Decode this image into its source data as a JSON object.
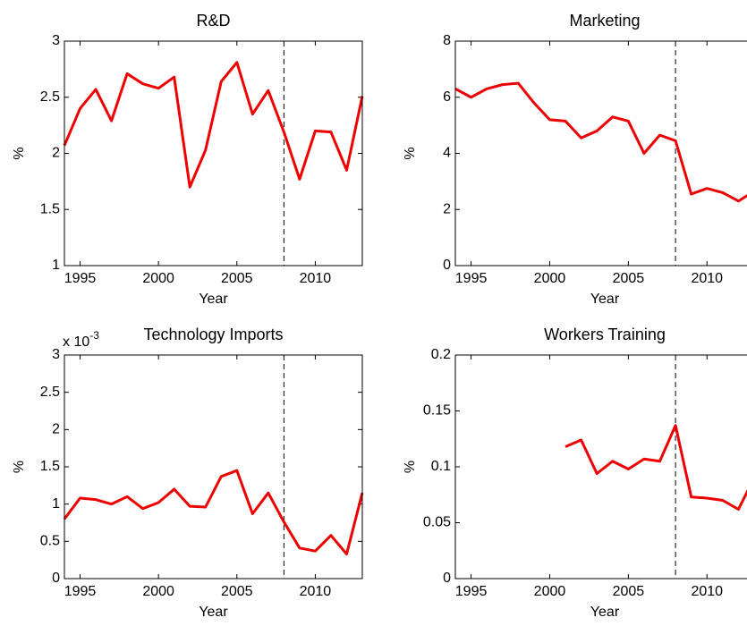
{
  "chart_data": [
    {
      "type": "line",
      "title": "R&D",
      "xlabel": "Year",
      "ylabel": "%",
      "x": [
        1994,
        1995,
        1996,
        1997,
        1998,
        1999,
        2000,
        2001,
        2002,
        2003,
        2004,
        2005,
        2006,
        2007,
        2008,
        2009,
        2010,
        2011,
        2012,
        2013
      ],
      "series": [
        {
          "color": "#ee0000",
          "values": [
            2.07,
            2.4,
            2.57,
            2.29,
            2.71,
            2.62,
            2.58,
            2.68,
            1.7,
            2.03,
            2.64,
            2.81,
            2.35,
            2.56,
            2.19,
            1.77,
            2.2,
            2.19,
            1.85,
            2.51
          ]
        }
      ],
      "xlim": [
        1994,
        2013
      ],
      "xticks": [
        1995,
        2000,
        2005,
        2010
      ],
      "ylim": [
        1,
        3
      ],
      "yticks": [
        1,
        1.5,
        2,
        2.5,
        3
      ],
      "vline": 2008
    },
    {
      "type": "line",
      "title": "Marketing",
      "xlabel": "Year",
      "ylabel": "%",
      "x": [
        1994,
        1995,
        1996,
        1997,
        1998,
        1999,
        2000,
        2001,
        2002,
        2003,
        2004,
        2005,
        2006,
        2007,
        2008,
        2009,
        2010,
        2011,
        2012,
        2013
      ],
      "series": [
        {
          "color": "#ee0000",
          "values": [
            6.3,
            6.0,
            6.3,
            6.45,
            6.5,
            5.8,
            5.2,
            5.15,
            4.55,
            4.8,
            5.3,
            5.15,
            4.0,
            4.65,
            4.45,
            2.55,
            2.75,
            2.6,
            2.3,
            2.65
          ]
        }
      ],
      "xlim": [
        1994,
        2013
      ],
      "xticks": [
        1995,
        2000,
        2005,
        2010
      ],
      "ylim": [
        0,
        8
      ],
      "yticks": [
        0,
        2,
        4,
        6,
        8
      ],
      "vline": 2008
    },
    {
      "type": "line",
      "title": "Technology Imports",
      "xlabel": "Year",
      "ylabel": "%",
      "axis_multiplier": {
        "base": "x 10",
        "exponent": "-3"
      },
      "x": [
        1994,
        1995,
        1996,
        1997,
        1998,
        1999,
        2000,
        2001,
        2002,
        2003,
        2004,
        2005,
        2006,
        2007,
        2008,
        2009,
        2010,
        2011,
        2012,
        2013
      ],
      "series": [
        {
          "color": "#ee0000",
          "values": [
            0.8,
            1.08,
            1.06,
            1.0,
            1.1,
            0.94,
            1.02,
            1.2,
            0.97,
            0.96,
            1.37,
            1.45,
            0.87,
            1.15,
            0.76,
            0.41,
            0.37,
            0.58,
            0.33,
            1.15
          ]
        }
      ],
      "xlim": [
        1994,
        2013
      ],
      "xticks": [
        1995,
        2000,
        2005,
        2010
      ],
      "ylim": [
        0,
        3
      ],
      "yticks": [
        0,
        0.5,
        1,
        1.5,
        2,
        2.5,
        3
      ],
      "vline": 2008
    },
    {
      "type": "line",
      "title": "Workers Training",
      "xlabel": "Year",
      "ylabel": "%",
      "x": [
        1994,
        1995,
        1996,
        1997,
        1998,
        1999,
        2000,
        2001,
        2002,
        2003,
        2004,
        2005,
        2006,
        2007,
        2008,
        2009,
        2010,
        2011,
        2012,
        2013
      ],
      "series": [
        {
          "color": "#ee0000",
          "values": [
            null,
            null,
            null,
            null,
            null,
            null,
            null,
            0.118,
            0.124,
            0.094,
            0.105,
            0.098,
            0.107,
            0.105,
            0.137,
            0.073,
            0.072,
            0.07,
            0.062,
            0.09
          ]
        }
      ],
      "xlim": [
        1994,
        2013
      ],
      "xticks": [
        1995,
        2000,
        2005,
        2010
      ],
      "ylim": [
        0,
        0.2
      ],
      "yticks": [
        0,
        0.05,
        0.1,
        0.15,
        0.2
      ],
      "vline": 2008
    }
  ]
}
